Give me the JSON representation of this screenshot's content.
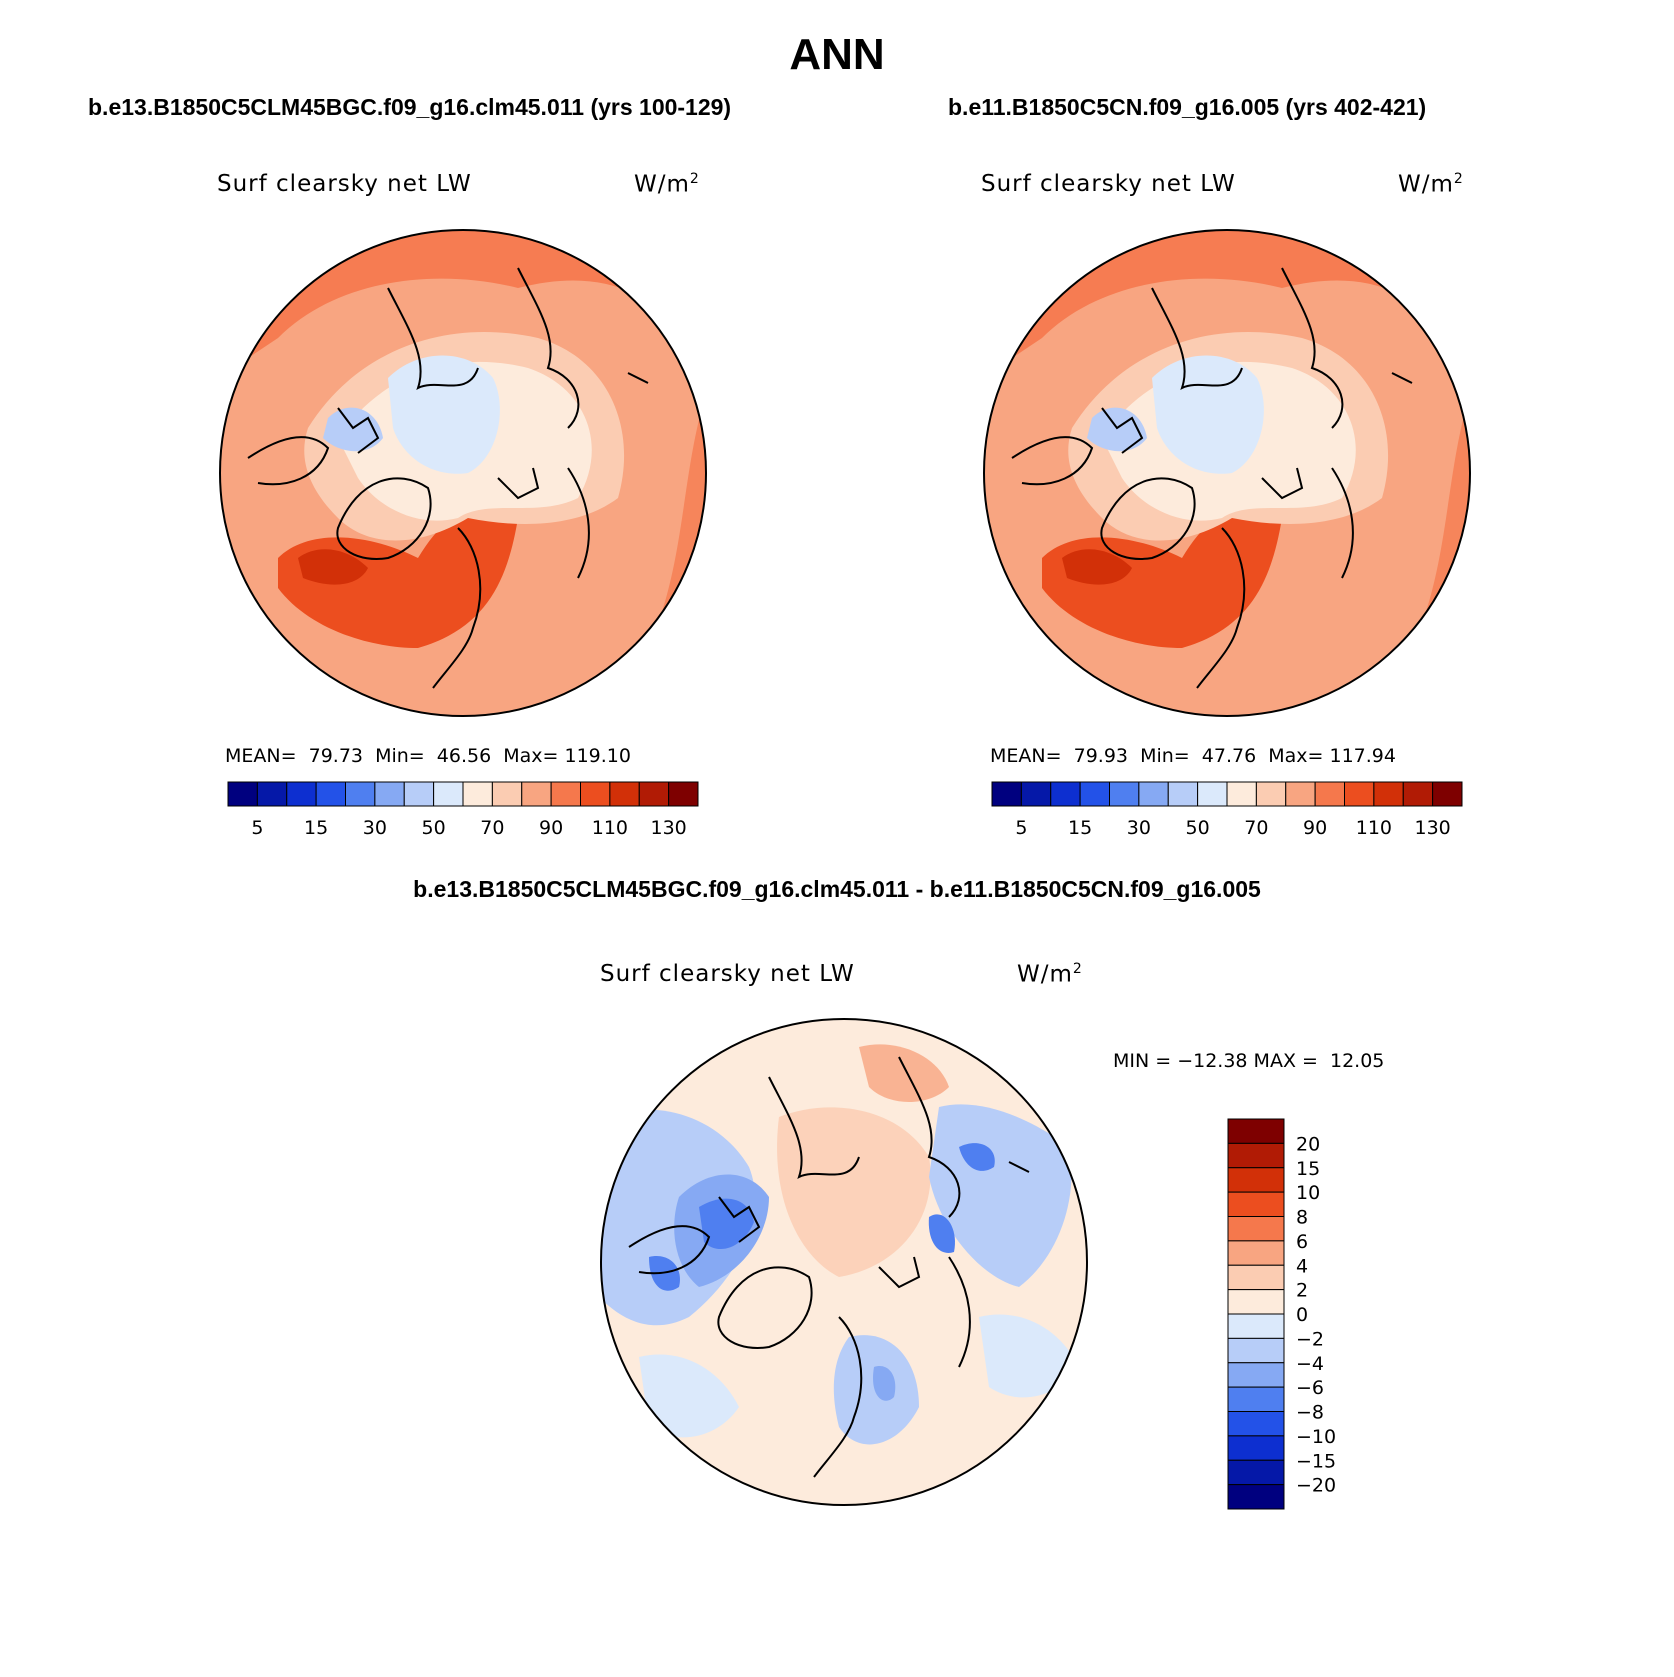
{
  "title": "ANN",
  "panels": [
    {
      "case_title": "b.e13.B1850C5CLM45BGC.f09_g16.clm45.011 (yrs 100-129)",
      "variable": "Surf clearsky net LW",
      "units_base": "W/m",
      "units_exp": "2",
      "stats_text": "MEAN=  79.73  Min=  46.56  Max= 119.10"
    },
    {
      "case_title": "b.e11.B1850C5CN.f09_g16.005 (yrs 402-421)",
      "variable": "Surf clearsky net LW",
      "units_base": "W/m",
      "units_exp": "2",
      "stats_text": "MEAN=  79.93  Min=  47.76  Max= 117.94"
    }
  ],
  "difference": {
    "case_title": "b.e13.B1850C5CLM45BGC.f09_g16.clm45.011 - b.e11.B1850C5CN.f09_g16.005",
    "variable": "Surf clearsky net LW",
    "units_base": "W/m",
    "units_exp": "2",
    "minmax_text": "MIN = −12.38 MAX =  12.05"
  },
  "chart_data": [
    {
      "type": "polar-contour-map",
      "projection": "north-polar-stereographic",
      "title": "b.e13.B1850C5CLM45BGC.f09_g16.clm45.011 (yrs 100-129)",
      "variable": "Surf clearsky net LW",
      "units": "W/m2",
      "mean": 79.73,
      "min": 46.56,
      "max": 119.1,
      "colorbar": {
        "orientation": "horizontal",
        "tick_labels": [
          "5",
          "15",
          "30",
          "50",
          "70",
          "90",
          "110",
          "130"
        ],
        "colors": [
          "#00007f",
          "#0518a8",
          "#0d2fd0",
          "#2352e8",
          "#4f7ff0",
          "#86a9f3",
          "#b7cdf8",
          "#dbe9fb",
          "#fdebdc",
          "#fbccb2",
          "#f8a581",
          "#f5784c",
          "#ec4e1f",
          "#d23008",
          "#b11b05",
          "#7e0000"
        ]
      },
      "field_summary": "Central Arctic Ocean and Canadian Archipelago lowest (~50-70), mid-latitudes 90-110, highest (110-130) over North Atlantic / Labrador Sea"
    },
    {
      "type": "polar-contour-map",
      "projection": "north-polar-stereographic",
      "title": "b.e11.B1850C5CN.f09_g16.005 (yrs 402-421)",
      "variable": "Surf clearsky net LW",
      "units": "W/m2",
      "mean": 79.93,
      "min": 47.76,
      "max": 117.94,
      "colorbar": {
        "orientation": "horizontal",
        "tick_labels": [
          "5",
          "15",
          "30",
          "50",
          "70",
          "90",
          "110",
          "130"
        ],
        "colors": [
          "#00007f",
          "#0518a8",
          "#0d2fd0",
          "#2352e8",
          "#4f7ff0",
          "#86a9f3",
          "#b7cdf8",
          "#dbe9fb",
          "#fdebdc",
          "#fbccb2",
          "#f8a581",
          "#f5784c",
          "#ec4e1f",
          "#d23008",
          "#b11b05",
          "#7e0000"
        ]
      },
      "field_summary": "Same pattern as first panel"
    },
    {
      "type": "polar-contour-map",
      "projection": "north-polar-stereographic",
      "title": "b.e13.B1850C5CLM45BGC.f09_g16.clm45.011 - b.e11.B1850C5CN.f09_g16.005",
      "variable": "Surf clearsky net LW",
      "units": "W/m2",
      "min": -12.38,
      "max": 12.05,
      "colorbar": {
        "orientation": "vertical",
        "tick_labels": [
          "20",
          "15",
          "10",
          "8",
          "6",
          "4",
          "2",
          "0",
          "−2",
          "−4",
          "−6",
          "−8",
          "−10",
          "−15",
          "−20"
        ],
        "colors": [
          "#7e0000",
          "#b11b05",
          "#d23008",
          "#ec4e1f",
          "#f5784c",
          "#f8a581",
          "#fbccb2",
          "#fdebdc",
          "#dbe9fb",
          "#b7cdf8",
          "#86a9f3",
          "#4f7ff0",
          "#2352e8",
          "#0d2fd0",
          "#0518a8",
          "#00007f"
        ]
      },
      "field_summary": "Mostly 0 to 2 over Arctic Ocean, negative (−4 to −10) over Canadian Archipelago, Scandinavia and parts of Siberia"
    }
  ]
}
